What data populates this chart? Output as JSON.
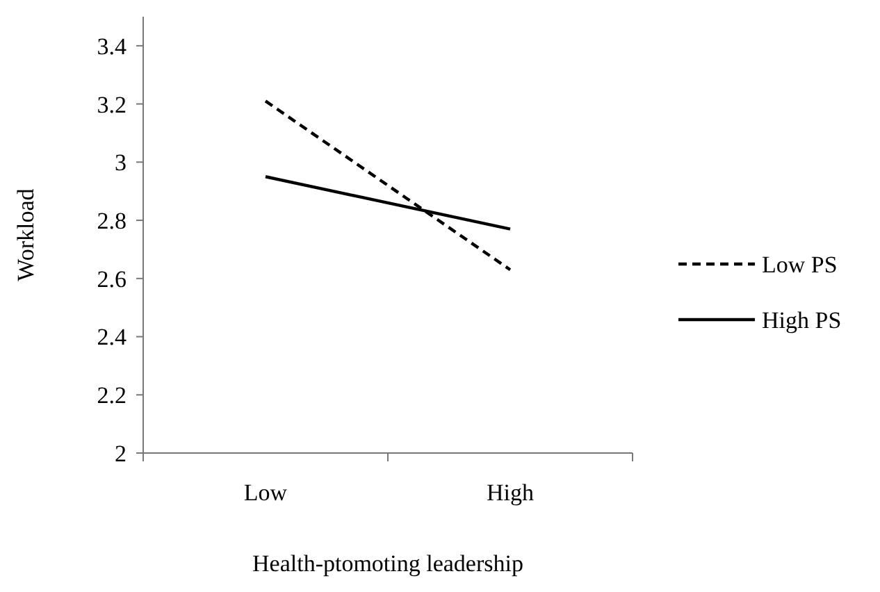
{
  "chart_data": {
    "type": "line",
    "xlabel": "Health-ptomoting leadership",
    "ylabel": "Workload",
    "categories": [
      "Low",
      "High"
    ],
    "series": [
      {
        "name": "Low PS",
        "color": "#000000",
        "values": [
          3.21,
          2.63
        ],
        "line_style": "dashed"
      },
      {
        "name": "High PS",
        "color": "#000000",
        "values": [
          2.95,
          2.77
        ],
        "line_style": "solid"
      }
    ],
    "ylim": [
      2,
      3.5
    ],
    "yticks": [
      2,
      2.2,
      2.4,
      2.6,
      2.8,
      3,
      3.2,
      3.4
    ],
    "grid": false,
    "legend": "right",
    "marker": "none"
  }
}
